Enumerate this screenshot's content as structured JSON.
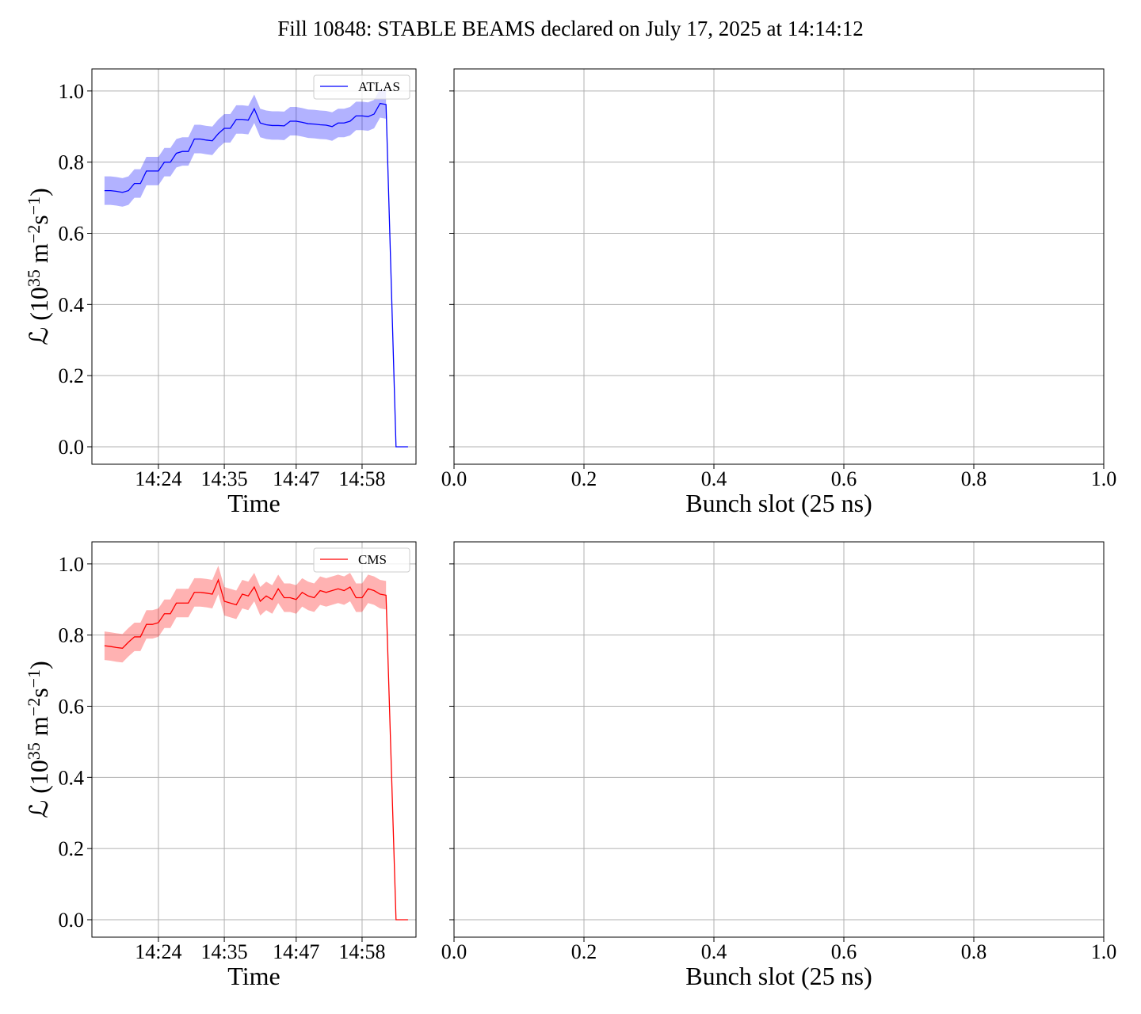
{
  "title": "Fill 10848: STABLE BEAMS declared on July 17, 2025 at 14:14:12",
  "chart_data": [
    {
      "type": "line",
      "xlabel": "Time",
      "ylabel": [
        "ℒ (10",
        "35",
        " m",
        "−2",
        "s",
        "−1",
        ")"
      ],
      "x": [
        "14:15",
        "14:16",
        "14:17",
        "14:18",
        "14:19",
        "14:20",
        "14:21",
        "14:22",
        "14:23",
        "14:24",
        "14:25",
        "14:26",
        "14:27",
        "14:28",
        "14:29",
        "14:30",
        "14:31",
        "14:32",
        "14:33",
        "14:34",
        "14:35",
        "14:36",
        "14:37",
        "14:38",
        "14:39",
        "14:40",
        "14:41",
        "14:42",
        "14:43",
        "14:44",
        "14:45",
        "14:46",
        "14:47",
        "14:48",
        "14:49",
        "14:50",
        "14:51",
        "14:52",
        "14:53",
        "14:54",
        "14:55",
        "14:56",
        "14:57",
        "14:58",
        "14:59",
        "15:00",
        "15:01",
        "15:02",
        "15:03:40",
        "15:05:40"
      ],
      "series": [
        {
          "name": "ATLAS",
          "color": "#0000ff",
          "values": [
            0.72,
            0.72,
            0.718,
            0.715,
            0.72,
            0.74,
            0.74,
            0.775,
            0.775,
            0.775,
            0.8,
            0.8,
            0.825,
            0.83,
            0.83,
            0.865,
            0.865,
            0.862,
            0.86,
            0.88,
            0.895,
            0.895,
            0.92,
            0.92,
            0.918,
            0.95,
            0.91,
            0.905,
            0.903,
            0.903,
            0.902,
            0.915,
            0.915,
            0.912,
            0.908,
            0.907,
            0.905,
            0.904,
            0.9,
            0.91,
            0.91,
            0.915,
            0.93,
            0.93,
            0.928,
            0.935,
            0.965,
            0.962,
            0,
            0
          ],
          "lower": [
            0.68,
            0.68,
            0.678,
            0.675,
            0.68,
            0.7,
            0.7,
            0.735,
            0.735,
            0.735,
            0.76,
            0.76,
            0.785,
            0.79,
            0.79,
            0.825,
            0.825,
            0.822,
            0.82,
            0.84,
            0.855,
            0.855,
            0.88,
            0.88,
            0.878,
            0.91,
            0.87,
            0.865,
            0.863,
            0.863,
            0.862,
            0.875,
            0.875,
            0.872,
            0.868,
            0.867,
            0.865,
            0.864,
            0.86,
            0.87,
            0.87,
            0.875,
            0.89,
            0.89,
            0.888,
            0.895,
            0.925,
            0.922,
            null,
            null
          ],
          "upper": [
            0.76,
            0.76,
            0.758,
            0.755,
            0.76,
            0.78,
            0.78,
            0.815,
            0.815,
            0.815,
            0.84,
            0.84,
            0.865,
            0.87,
            0.87,
            0.905,
            0.905,
            0.902,
            0.9,
            0.92,
            0.935,
            0.935,
            0.96,
            0.96,
            0.958,
            0.99,
            0.95,
            0.945,
            0.943,
            0.943,
            0.942,
            0.955,
            0.955,
            0.952,
            0.948,
            0.947,
            0.945,
            0.944,
            0.94,
            0.95,
            0.95,
            0.955,
            0.97,
            0.97,
            0.968,
            0.975,
            1.005,
            1.002,
            null,
            null
          ]
        }
      ],
      "xlim": [
        "14:12:54",
        "15:07:00"
      ],
      "xticks": [
        "14:24",
        "14:35",
        "14:47",
        "14:58"
      ],
      "ylim": [
        -0.049,
        1.062
      ],
      "yticks": [
        {
          "value": 0,
          "label": "0.0"
        },
        {
          "value": 0.2,
          "label": "0.2"
        },
        {
          "value": 0.4,
          "label": "0.4"
        },
        {
          "value": 0.6,
          "label": "0.6"
        },
        {
          "value": 0.8,
          "label": "0.8"
        },
        {
          "value": 1,
          "label": "1.0"
        }
      ],
      "grid": true,
      "legend": "upper right"
    },
    {
      "type": "empty",
      "xlabel": "Bunch slot (25 ns)",
      "xlim": [
        0,
        1
      ],
      "xticks": [
        {
          "value": 0,
          "label": "0.0"
        },
        {
          "value": 0.2,
          "label": "0.2"
        },
        {
          "value": 0.4,
          "label": "0.4"
        },
        {
          "value": 0.6,
          "label": "0.6"
        },
        {
          "value": 0.8,
          "label": "0.8"
        },
        {
          "value": 1,
          "label": "1.0"
        }
      ],
      "ylim": [
        -0.049,
        1.062
      ],
      "yticks": [
        0,
        0.2,
        0.4,
        0.6,
        0.8,
        1
      ],
      "grid": true
    },
    {
      "type": "line",
      "xlabel": "Time",
      "ylabel": [
        "ℒ (10",
        "35",
        " m",
        "−2",
        "s",
        "−1",
        ")"
      ],
      "x": [
        "14:15",
        "14:16",
        "14:17",
        "14:18",
        "14:19",
        "14:20",
        "14:21",
        "14:22",
        "14:23",
        "14:24",
        "14:25",
        "14:26",
        "14:27",
        "14:28",
        "14:29",
        "14:30",
        "14:31",
        "14:32",
        "14:33",
        "14:34",
        "14:35",
        "14:36",
        "14:37",
        "14:38",
        "14:39",
        "14:40",
        "14:41",
        "14:42",
        "14:43",
        "14:44",
        "14:45",
        "14:46",
        "14:47",
        "14:48",
        "14:49",
        "14:50",
        "14:51",
        "14:52",
        "14:53",
        "14:54",
        "14:55",
        "14:56",
        "14:57",
        "14:58",
        "14:59",
        "15:00",
        "15:01",
        "15:02",
        "15:03:40",
        "15:05:40"
      ],
      "series": [
        {
          "name": "CMS",
          "color": "#ff0000",
          "values": [
            0.77,
            0.768,
            0.765,
            0.763,
            0.78,
            0.795,
            0.795,
            0.83,
            0.83,
            0.835,
            0.86,
            0.86,
            0.89,
            0.89,
            0.89,
            0.92,
            0.92,
            0.918,
            0.915,
            0.955,
            0.895,
            0.89,
            0.885,
            0.915,
            0.91,
            0.935,
            0.895,
            0.91,
            0.9,
            0.93,
            0.905,
            0.905,
            0.9,
            0.92,
            0.91,
            0.905,
            0.925,
            0.92,
            0.925,
            0.93,
            0.925,
            0.935,
            0.905,
            0.905,
            0.93,
            0.925,
            0.915,
            0.912,
            0,
            0
          ],
          "lower": [
            0.73,
            0.728,
            0.725,
            0.723,
            0.74,
            0.755,
            0.755,
            0.79,
            0.79,
            0.795,
            0.82,
            0.82,
            0.85,
            0.85,
            0.85,
            0.88,
            0.88,
            0.878,
            0.875,
            0.915,
            0.855,
            0.85,
            0.845,
            0.875,
            0.87,
            0.895,
            0.855,
            0.87,
            0.86,
            0.89,
            0.865,
            0.865,
            0.86,
            0.88,
            0.87,
            0.865,
            0.885,
            0.88,
            0.885,
            0.89,
            0.885,
            0.895,
            0.865,
            0.865,
            0.89,
            0.885,
            0.875,
            0.872,
            null,
            null
          ],
          "upper": [
            0.81,
            0.808,
            0.805,
            0.803,
            0.82,
            0.835,
            0.835,
            0.87,
            0.87,
            0.875,
            0.9,
            0.9,
            0.93,
            0.93,
            0.93,
            0.96,
            0.96,
            0.958,
            0.955,
            0.995,
            0.935,
            0.93,
            0.925,
            0.955,
            0.95,
            0.975,
            0.935,
            0.95,
            0.94,
            0.97,
            0.945,
            0.945,
            0.94,
            0.96,
            0.95,
            0.945,
            0.965,
            0.96,
            0.965,
            0.97,
            0.965,
            0.975,
            0.945,
            0.945,
            0.97,
            0.965,
            0.955,
            0.952,
            null,
            null
          ]
        }
      ],
      "xlim": [
        "14:12:54",
        "15:07:00"
      ],
      "xticks": [
        "14:24",
        "14:35",
        "14:47",
        "14:58"
      ],
      "ylim": [
        -0.049,
        1.062
      ],
      "yticks": [
        {
          "value": 0,
          "label": "0.0"
        },
        {
          "value": 0.2,
          "label": "0.2"
        },
        {
          "value": 0.4,
          "label": "0.4"
        },
        {
          "value": 0.6,
          "label": "0.6"
        },
        {
          "value": 0.8,
          "label": "0.8"
        },
        {
          "value": 1,
          "label": "1.0"
        }
      ],
      "grid": true,
      "legend": "upper right"
    },
    {
      "type": "empty",
      "xlabel": "Bunch slot (25 ns)",
      "xlim": [
        0,
        1
      ],
      "xticks": [
        {
          "value": 0,
          "label": "0.0"
        },
        {
          "value": 0.2,
          "label": "0.2"
        },
        {
          "value": 0.4,
          "label": "0.4"
        },
        {
          "value": 0.6,
          "label": "0.6"
        },
        {
          "value": 0.8,
          "label": "0.8"
        },
        {
          "value": 1,
          "label": "1.0"
        }
      ],
      "ylim": [
        -0.049,
        1.062
      ],
      "yticks": [
        0,
        0.2,
        0.4,
        0.6,
        0.8,
        1
      ],
      "grid": true
    }
  ]
}
